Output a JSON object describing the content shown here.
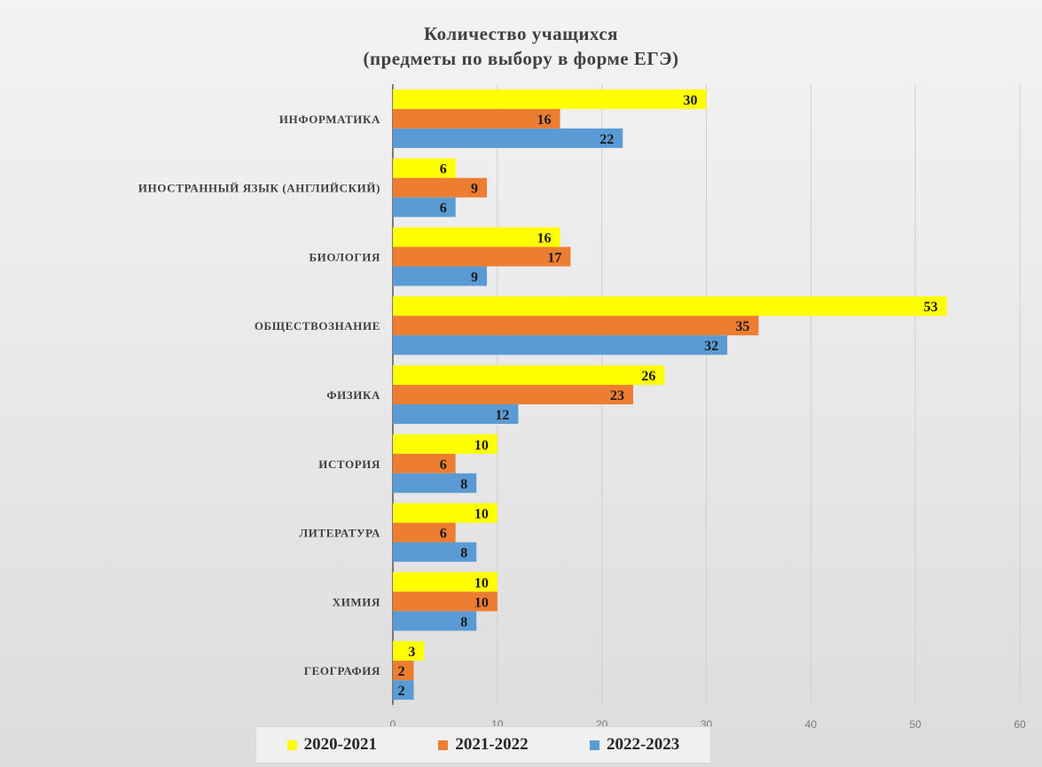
{
  "chart_data": {
    "type": "bar",
    "orientation": "horizontal",
    "title_line1": "Количество учащихся",
    "title_line2": "(предметы по выбору в форме ЕГЭ)",
    "categories": [
      "ИНФОРМАТИКА",
      "ИНОСТРАННЫЙ ЯЗЫК (АНГЛИЙСКИЙ)",
      "БИОЛОГИЯ",
      "ОБЩЕСТВОЗНАНИЕ",
      "ФИЗИКА",
      "ИСТОРИЯ",
      "ЛИТЕРАТУРА",
      "ХИМИЯ",
      "ГЕОГРАФИЯ"
    ],
    "series": [
      {
        "name": "2020-2021",
        "color": "#ffff00",
        "values": [
          30,
          6,
          16,
          53,
          26,
          10,
          10,
          10,
          3
        ]
      },
      {
        "name": "2021-2022",
        "color": "#ed7d31",
        "values": [
          16,
          9,
          17,
          35,
          23,
          6,
          6,
          10,
          2
        ]
      },
      {
        "name": "2022-2023",
        "color": "#5b9bd5",
        "values": [
          22,
          6,
          9,
          32,
          12,
          8,
          8,
          8,
          2
        ]
      }
    ],
    "xlim": [
      0,
      60
    ],
    "xticks": [
      "0",
      "10",
      "20",
      "30",
      "40",
      "50",
      "60"
    ],
    "grid": true,
    "legend_position": "bottom"
  }
}
